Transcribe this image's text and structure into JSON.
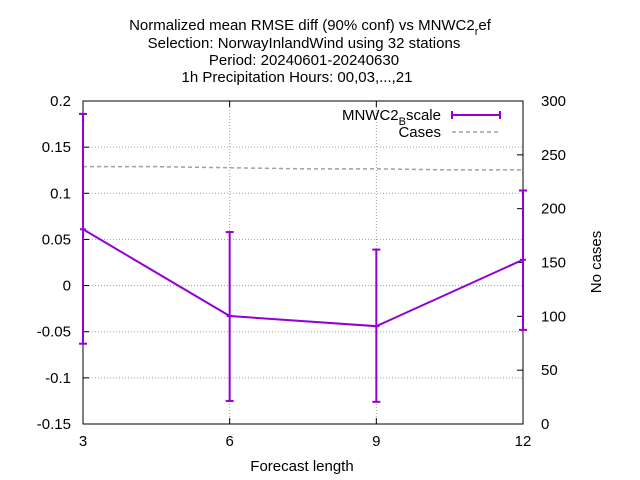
{
  "chart_data": {
    "type": "line",
    "title_lines": [
      "Normalized mean RMSE diff (90% conf) vs MNWC2_ref",
      "Selection: NorwayInlandWind using    32 stations",
      "Period: 20240601-20240630",
      "1h Precipitation   Hours: 00,03,...,21"
    ],
    "xlabel": "Forecast length",
    "ylabel": "",
    "y2label": "No cases",
    "xlim": [
      3,
      12
    ],
    "ylim": [
      -0.15,
      0.2
    ],
    "y2lim": [
      0,
      300
    ],
    "x_ticks": [
      "3",
      "6",
      "9",
      "12"
    ],
    "y_ticks": [
      "0.2",
      "0.15",
      "0.1",
      "0.05",
      "0",
      "-0.05",
      "-0.1",
      "-0.15"
    ],
    "y2_ticks": [
      "300",
      "250",
      "200",
      "150",
      "100",
      "50",
      "0"
    ],
    "grid": true,
    "legend_position": "top-right",
    "series": [
      {
        "name": "MNWC2_Bscale",
        "color": "#9400d3",
        "axis": "y",
        "style": "line-with-errorbars",
        "x": [
          3,
          6,
          9,
          12
        ],
        "y": [
          0.061,
          -0.033,
          -0.044,
          0.028
        ],
        "err_low": [
          -0.063,
          -0.125,
          -0.126,
          -0.048
        ],
        "err_high": [
          0.186,
          0.058,
          0.039,
          0.103
        ]
      },
      {
        "name": "Cases",
        "color": "#a0a0a0",
        "axis": "y2",
        "style": "dashed",
        "x": [
          3,
          4.5,
          6,
          7.5,
          9,
          10.5,
          12
        ],
        "y": [
          239,
          239,
          238,
          237,
          237,
          236,
          236
        ]
      }
    ]
  }
}
